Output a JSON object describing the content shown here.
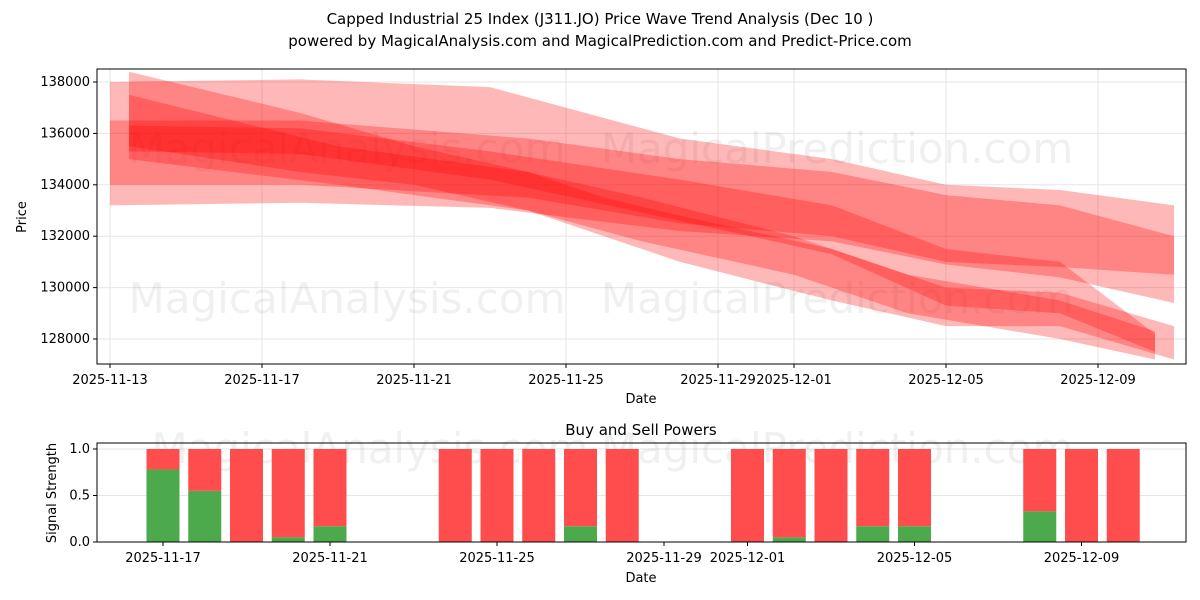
{
  "chart_data": [
    {
      "type": "area",
      "title": "Capped Industrial 25 Index (J311.JO) Price Wave Trend Analysis (Dec 10 )",
      "subtitle": "powered by MagicalAnalysis.com and MagicalPrediction.com and Predict-Price.com",
      "xlabel": "Date",
      "ylabel": "Price",
      "ylim": [
        127100,
        138600
      ],
      "x_start": "2025-11-13",
      "xticks": [
        "2025-11-13",
        "2025-11-17",
        "2025-11-21",
        "2025-11-25",
        "2025-11-29",
        "2025-12-01",
        "2025-12-05",
        "2025-12-09"
      ],
      "xtick_days": [
        0,
        4,
        8,
        12,
        16,
        18,
        22,
        26
      ],
      "yticks": [
        128000,
        130000,
        132000,
        134000,
        136000,
        138000
      ],
      "grid": true,
      "color": "#ff0000",
      "bands": [
        {
          "name": "band-1",
          "days": [
            0,
            5,
            10,
            15,
            19,
            22,
            25,
            28
          ],
          "upper": [
            138000,
            138100,
            137800,
            135800,
            135000,
            134000,
            133800,
            133200
          ],
          "lower": [
            133200,
            133300,
            133100,
            132200,
            131800,
            130900,
            130400,
            129400
          ]
        },
        {
          "name": "band-2",
          "days": [
            0,
            5,
            11,
            15,
            19,
            22,
            25,
            28
          ],
          "upper": [
            136500,
            136500,
            135800,
            135000,
            134500,
            133600,
            133200,
            132000
          ],
          "lower": [
            134000,
            134000,
            133500,
            132500,
            132000,
            131000,
            130800,
            130500
          ]
        },
        {
          "name": "band-3",
          "days": [
            0.5,
            5,
            8,
            11,
            13,
            15,
            19,
            22,
            25,
            28
          ],
          "upper": [
            138400,
            136800,
            135500,
            134500,
            133500,
            132800,
            131500,
            130000,
            129800,
            128500
          ],
          "lower": [
            135500,
            134500,
            134000,
            133000,
            132000,
            131000,
            129500,
            128500,
            128500,
            127200
          ]
        },
        {
          "name": "band-4",
          "days": [
            0.5,
            6,
            11,
            14,
            18,
            21,
            25,
            27.5
          ],
          "upper": [
            137500,
            135500,
            134500,
            133500,
            132000,
            130500,
            129500,
            128300
          ],
          "lower": [
            135000,
            134000,
            133000,
            131800,
            130500,
            129000,
            128000,
            127200
          ]
        },
        {
          "name": "band-5",
          "days": [
            0.5,
            5,
            10,
            15,
            19,
            22,
            25,
            27.5
          ],
          "upper": [
            136300,
            136200,
            135300,
            134200,
            133200,
            131500,
            131000,
            128200
          ],
          "lower": [
            135300,
            135200,
            134200,
            132600,
            131300,
            129300,
            129000,
            127500
          ]
        }
      ],
      "watermarks": [
        "MagicalAnalysis.com",
        "MagicalPrediction.com"
      ]
    },
    {
      "type": "bar",
      "title": "Buy and Sell Powers",
      "xlabel": "Date",
      "ylabel": "Signal Strength",
      "ylim": [
        0,
        1.05
      ],
      "yticks": [
        "0.0",
        "0.5",
        "1.0"
      ],
      "xticks": [
        "2025-11-17",
        "2025-11-21",
        "2025-11-25",
        "2025-11-29",
        "2025-12-01",
        "2025-12-05",
        "2025-12-09"
      ],
      "xtick_days": [
        4,
        8,
        12,
        16,
        18,
        22,
        26
      ],
      "bar_days": [
        4,
        5,
        6,
        7,
        8,
        11,
        12,
        13,
        14,
        15,
        18,
        19,
        20,
        21,
        22,
        25,
        26,
        27
      ],
      "categories": [
        "2025-11-17",
        "2025-11-18",
        "2025-11-19",
        "2025-11-20",
        "2025-11-21",
        "2025-11-24",
        "2025-11-25",
        "2025-11-26",
        "2025-11-27",
        "2025-11-28",
        "2025-12-01",
        "2025-12-02",
        "2025-12-03",
        "2025-12-04",
        "2025-12-05",
        "2025-12-08",
        "2025-12-09",
        "2025-12-10"
      ],
      "series": [
        {
          "name": "Buy",
          "color": "#4caa4c",
          "values": [
            0.78,
            0.55,
            0,
            0.05,
            0.17,
            0,
            0,
            0,
            0.17,
            0,
            0,
            0.05,
            0,
            0.17,
            0.17,
            0.33,
            0,
            0
          ]
        },
        {
          "name": "Sell",
          "color": "#ff4c4c",
          "values": [
            0.22,
            0.45,
            1,
            0.95,
            0.83,
            1,
            1,
            1,
            0.83,
            1,
            1,
            0.95,
            1,
            0.83,
            0.83,
            0.67,
            1,
            1
          ]
        }
      ]
    }
  ]
}
